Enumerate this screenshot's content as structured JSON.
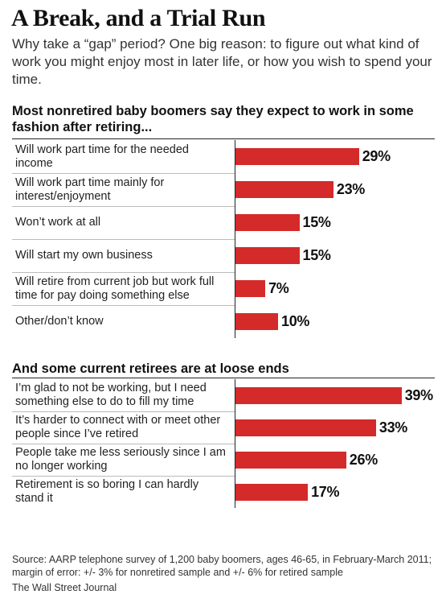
{
  "title": "A Break, and a Trial Run",
  "subtitle": "Why take a “gap” period? One big reason: to figure out what kind of work you might enjoy most in later life, or how you wish to spend your time.",
  "chart_data": [
    {
      "type": "bar",
      "orientation": "horizontal",
      "title": "Most nonretired baby boomers say they expect to work in some fashion after retiring...",
      "categories": [
        "Will work part time for the needed income",
        "Will work part time mainly for interest/enjoyment",
        "Won’t work at all",
        "Will start my own business",
        "Will retire from current job but work full time for pay doing something else",
        "Other/don’t know"
      ],
      "values": [
        29,
        23,
        15,
        15,
        7,
        10
      ],
      "value_labels": [
        "29%",
        "23%",
        "15%",
        "15%",
        "7%",
        "10%"
      ],
      "xlim": [
        0,
        45
      ],
      "grid": false,
      "bar_color": "#d42a2a"
    },
    {
      "type": "bar",
      "orientation": "horizontal",
      "title": "And some current retirees are at loose ends",
      "categories": [
        "I’m glad to not be working, but I need something else to do to fill my time",
        "It’s harder to connect with or meet other people since I’ve retired",
        "People take me less seriously since I am no longer working",
        "Retirement is so boring I can hardly stand it"
      ],
      "values": [
        39,
        33,
        26,
        17
      ],
      "value_labels": [
        "39%",
        "33%",
        "26%",
        "17%"
      ],
      "xlim": [
        0,
        45
      ],
      "grid": false,
      "bar_color": "#d42a2a"
    }
  ],
  "source": "Source:  AARP telephone survey of 1,200 baby boomers, ages 46-65, in February-March 2011; margin of error: +/- 3% for nonretired sample and +/- 6% for retired sample",
  "credit": "The Wall Street Journal"
}
